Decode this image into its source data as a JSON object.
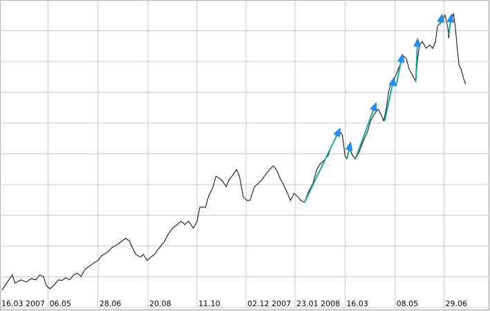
{
  "chart_data": {
    "type": "line",
    "x": [
      2,
      7,
      13,
      16,
      22,
      28,
      33,
      38,
      42,
      46,
      49,
      53,
      57,
      62,
      66,
      70,
      74,
      78,
      82,
      86,
      90,
      95,
      100,
      104,
      108,
      114,
      119,
      123,
      128,
      133,
      137,
      141,
      144,
      149,
      152,
      156,
      160,
      164,
      168,
      174,
      178,
      183,
      188,
      192,
      196,
      200,
      205,
      209,
      212,
      218,
      221,
      226,
      229,
      233,
      236,
      240,
      243,
      247,
      251,
      254,
      258,
      262,
      265,
      270,
      274,
      278,
      283,
      286,
      290,
      294,
      297,
      301,
      305,
      308,
      312,
      316,
      319,
      323,
      327,
      332,
      336,
      339,
      344,
      348,
      352,
      356,
      360,
      363,
      366,
      368,
      371,
      374,
      377,
      381,
      385,
      390,
      393,
      397,
      401,
      404,
      407,
      410,
      412,
      415,
      418,
      421,
      424,
      427,
      431,
      434,
      438,
      441,
      443,
      445,
      448,
      452,
      456,
      459,
      462,
      464,
      469,
      472,
      475,
      476,
      478,
      481,
      483,
      485,
      487,
      489,
      492,
      494
    ],
    "series": [
      {
        "color": "#000000",
        "values": [
          0.56,
          0.79,
          1.06,
          0.79,
          0.9,
          0.83,
          0.94,
          0.9,
          1.06,
          1.01,
          0.72,
          0.61,
          0.72,
          0.9,
          0.88,
          0.97,
          0.9,
          1.06,
          1.12,
          1.01,
          1.24,
          1.35,
          1.46,
          1.53,
          1.69,
          1.8,
          1.96,
          2.02,
          2.13,
          2.25,
          2.18,
          1.91,
          1.73,
          1.64,
          1.73,
          1.53,
          1.64,
          1.73,
          1.91,
          2.13,
          2.36,
          2.58,
          2.7,
          2.81,
          2.7,
          2.81,
          2.58,
          2.81,
          3.26,
          3.26,
          3.6,
          3.93,
          4.27,
          4.2,
          4.11,
          3.93,
          4.16,
          4.31,
          4.49,
          4.27,
          3.6,
          3.48,
          3.48,
          3.93,
          4.04,
          4.16,
          4.38,
          4.49,
          4.61,
          4.43,
          4.2,
          3.98,
          3.71,
          3.48,
          3.71,
          3.6,
          3.48,
          3.42,
          3.75,
          4.04,
          4.49,
          4.65,
          4.79,
          4.94,
          5.28,
          5.51,
          5.73,
          5.62,
          4.94,
          4.83,
          5.17,
          4.94,
          4.83,
          5.06,
          5.39,
          5.73,
          6.07,
          6.29,
          6.45,
          6.29,
          6.07,
          6.52,
          6.97,
          7.35,
          7.42,
          7.64,
          7.87,
          8.2,
          8.09,
          7.75,
          7.53,
          7.35,
          8.09,
          8.54,
          8.65,
          8.43,
          8.54,
          8.43,
          8.65,
          9.15,
          9.33,
          9.51,
          9.1,
          8.76,
          9.33,
          9.55,
          9.1,
          8.43,
          7.87,
          7.75,
          7.42,
          7.26
        ]
      }
    ],
    "signals": {
      "color": "#16a6a0",
      "head_color": "#1e90ff",
      "x0": [
        323,
        368,
        377,
        408,
        420,
        441,
        467,
        476
      ],
      "y0": [
        3.42,
        4.83,
        4.83,
        6.07,
        7.19,
        7.35,
        9.21,
        8.88
      ],
      "x1": [
        361,
        372,
        399,
        418,
        427,
        443,
        469,
        479
      ],
      "y1": [
        5.84,
        5.39,
        6.67,
        7.49,
        8.25,
        8.76,
        9.55,
        9.55
      ]
    },
    "xlim": [
      0,
      519
    ],
    "xticks": [
      {
        "value": 0,
        "label": "16.03 2007"
      },
      {
        "value": 51,
        "label": "06.05"
      },
      {
        "value": 104,
        "label": "28.06"
      },
      {
        "value": 157,
        "label": "20.08"
      },
      {
        "value": 209,
        "label": "11.10"
      },
      {
        "value": 261,
        "label": "02.12 2007"
      },
      {
        "value": 313,
        "label": "23.01 2008"
      },
      {
        "value": 366,
        "label": "16.03"
      },
      {
        "value": 419,
        "label": "08.05"
      },
      {
        "value": 471,
        "label": "29.06"
      }
    ],
    "ylim": [
      0,
      10
    ],
    "yticks": [
      0,
      1,
      2,
      3,
      4,
      5,
      6,
      7,
      8,
      9,
      10
    ],
    "grid": true
  }
}
